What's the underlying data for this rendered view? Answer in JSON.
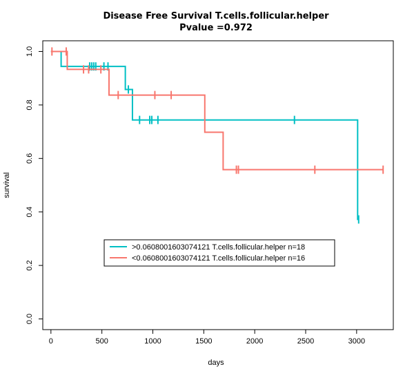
{
  "chart_data": {
    "type": "line",
    "title": "Disease Free Survival T.cells.follicular.helper",
    "subtitle": "Pvalue =0.972",
    "xlabel": "days",
    "ylabel": "survival",
    "xlim": [
      -80,
      3360
    ],
    "ylim": [
      -0.04,
      1.04
    ],
    "xticks": [
      0,
      500,
      1000,
      1500,
      2000,
      2500,
      3000
    ],
    "yticks": [
      0.0,
      0.2,
      0.4,
      0.6,
      0.8,
      1.0
    ],
    "xtick_labels": [
      "0",
      "500",
      "1000",
      "1500",
      "2000",
      "2500",
      "3000"
    ],
    "ytick_labels": [
      "0.0",
      "0.2",
      "0.4",
      "0.6",
      "0.8",
      "1.0"
    ],
    "grid": false,
    "legend_position": "center-bottom",
    "series": [
      {
        "name": ">0.0608001603074121 T.cells.follicular.helper n=18",
        "color": "#00BFC4",
        "steps": [
          [
            0,
            1.0
          ],
          [
            100,
            0.944
          ],
          [
            730,
            0.858
          ],
          [
            800,
            0.744
          ],
          [
            3010,
            0.744
          ],
          [
            3010,
            0.372
          ]
        ],
        "end_x": 3020,
        "censor": [
          [
            380,
            0.944
          ],
          [
            400,
            0.944
          ],
          [
            420,
            0.944
          ],
          [
            440,
            0.944
          ],
          [
            520,
            0.944
          ],
          [
            560,
            0.944
          ],
          [
            760,
            0.858
          ],
          [
            870,
            0.744
          ],
          [
            970,
            0.744
          ],
          [
            990,
            0.744
          ],
          [
            1050,
            0.744
          ],
          [
            2390,
            0.744
          ],
          [
            3020,
            0.372
          ]
        ]
      },
      {
        "name": "<0.0608001603074121 T.cells.follicular.helper n=16",
        "color": "#F8766D",
        "steps": [
          [
            0,
            1.0
          ],
          [
            160,
            0.933
          ],
          [
            570,
            0.837
          ],
          [
            1510,
            0.698
          ],
          [
            1690,
            0.558
          ]
        ],
        "end_x": 3260,
        "censor": [
          [
            10,
            1.0
          ],
          [
            150,
            1.0
          ],
          [
            320,
            0.933
          ],
          [
            370,
            0.933
          ],
          [
            490,
            0.933
          ],
          [
            660,
            0.837
          ],
          [
            1020,
            0.837
          ],
          [
            1180,
            0.837
          ],
          [
            1820,
            0.558
          ],
          [
            1840,
            0.558
          ],
          [
            2590,
            0.558
          ],
          [
            3260,
            0.558
          ]
        ]
      }
    ]
  }
}
